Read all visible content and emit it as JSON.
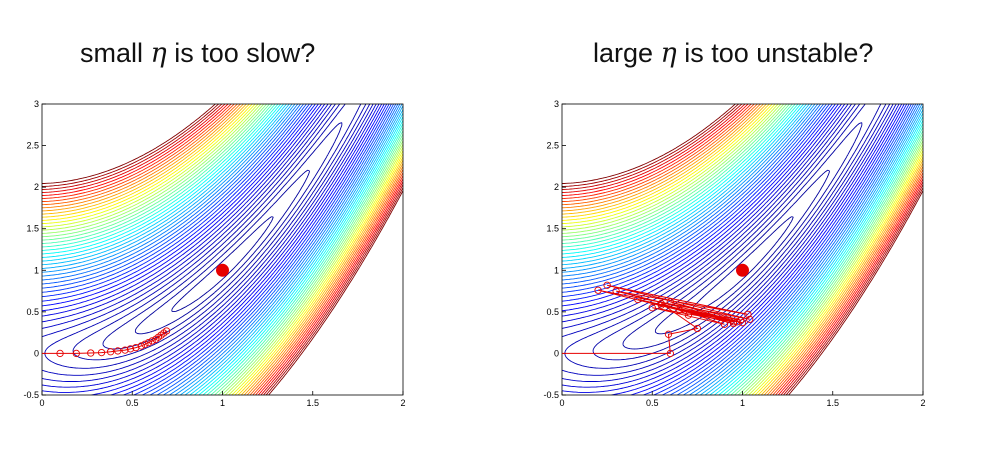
{
  "chart_data": [
    {
      "type": "line",
      "title_prefix": "small ",
      "title_symbol": "η",
      "title_suffix": " is too slow?",
      "xlim": [
        0,
        2
      ],
      "ylim": [
        -0.5,
        3
      ],
      "xticks": [
        0,
        0.5,
        1,
        1.5,
        2
      ],
      "yticks": [
        -0.5,
        0,
        0.5,
        1,
        1.5,
        2,
        2.5,
        3
      ],
      "xtick_labels": [
        "0",
        "0.5",
        "1",
        "1.5",
        "2"
      ],
      "ytick_labels": [
        "-0.5",
        "0",
        "0.5",
        "1",
        "1.5",
        "2",
        "2.5",
        "3"
      ],
      "grid": false,
      "contour": "Rosenbrock-like valley",
      "minimum": {
        "x": 1,
        "y": 1
      },
      "series": [
        {
          "color": "#e60000",
          "marker": "circle",
          "x": [
            0,
            0.1,
            0.19,
            0.27,
            0.33,
            0.38,
            0.42,
            0.46,
            0.49,
            0.52,
            0.55,
            0.57,
            0.59,
            0.61,
            0.63,
            0.645,
            0.66,
            0.675,
            0.69
          ],
          "y": [
            0,
            0,
            0,
            0.005,
            0.01,
            0.02,
            0.03,
            0.04,
            0.055,
            0.07,
            0.09,
            0.11,
            0.13,
            0.15,
            0.17,
            0.195,
            0.22,
            0.245,
            0.27
          ]
        }
      ]
    },
    {
      "type": "line",
      "title_prefix": "large ",
      "title_symbol": "η",
      "title_suffix": " is too unstable?",
      "xlim": [
        0,
        2
      ],
      "ylim": [
        -0.5,
        3
      ],
      "xticks": [
        0,
        0.5,
        1,
        1.5,
        2
      ],
      "yticks": [
        -0.5,
        0,
        0.5,
        1,
        1.5,
        2,
        2.5,
        3
      ],
      "xtick_labels": [
        "0",
        "0.5",
        "1",
        "1.5",
        "2"
      ],
      "ytick_labels": [
        "-0.5",
        "0",
        "0.5",
        "1",
        "1.5",
        "2",
        "2.5",
        "3"
      ],
      "grid": false,
      "contour": "Rosenbrock-like valley",
      "minimum": {
        "x": 1,
        "y": 1
      },
      "series": [
        {
          "color": "#e60000",
          "marker": "circle",
          "x": [
            0,
            0.6,
            0.59,
            0.75,
            0.55,
            0.9,
            0.5,
            0.95,
            0.42,
            1.0,
            0.3,
            1.03,
            0.25,
            1.04,
            0.2,
            0.95,
            0.55,
            0.99,
            0.6,
            0.97,
            0.65,
            0.7
          ],
          "y": [
            0,
            0,
            0.23,
            0.3,
            0.6,
            0.35,
            0.55,
            0.38,
            0.65,
            0.37,
            0.75,
            0.47,
            0.82,
            0.41,
            0.76,
            0.36,
            0.58,
            0.4,
            0.62,
            0.38,
            0.52,
            0.46
          ]
        }
      ]
    }
  ]
}
